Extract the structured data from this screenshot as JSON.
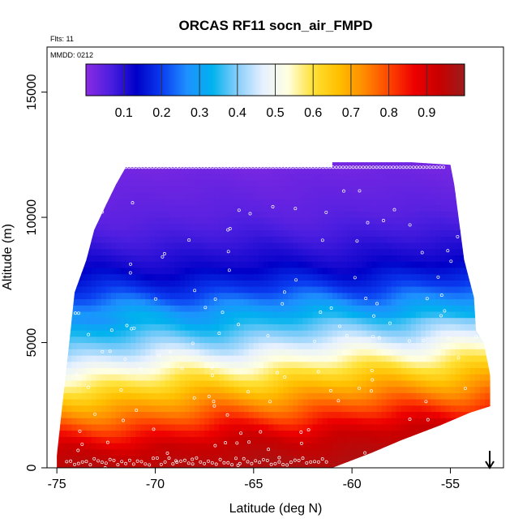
{
  "chart_data": {
    "type": "heatmap",
    "title": "ORCAS RF11 socn_air_FMPD",
    "annotations": [
      "Flts: 11",
      "MMDD: 0212"
    ],
    "xlabel": "Latitude (deg N)",
    "ylabel": "Altitude (m)",
    "xlim": [
      -75.5,
      -52.3
    ],
    "ylim": [
      0,
      16800
    ],
    "x_ticks": [
      -75,
      -70,
      -65,
      -60,
      -55
    ],
    "x_tick_labels": [
      "-75",
      "-70",
      "-65",
      "-60",
      "-55"
    ],
    "y_ticks": [
      0,
      5000,
      10000,
      15000
    ],
    "y_tick_labels": [
      "0",
      "5000",
      "10000",
      "15000"
    ],
    "colorbar": {
      "ticks": [
        0.1,
        0.2,
        0.3,
        0.4,
        0.5,
        0.6,
        0.7,
        0.8,
        0.9
      ],
      "tick_labels": [
        "0.1",
        "0.2",
        "0.3",
        "0.4",
        "0.5",
        "0.6",
        "0.7",
        "0.8",
        "0.9"
      ],
      "range": [
        0,
        1
      ],
      "colors": [
        "#8a2be2",
        "#4b1ee0",
        "#0000c8",
        "#0a3cf0",
        "#1e90ff",
        "#00b2ee",
        "#87cefa",
        "#e6f0ff",
        "#ffffe0",
        "#ffe135",
        "#ffc000",
        "#ff8c00",
        "#ff4500",
        "#ee0000",
        "#c80000",
        "#9b1c1c"
      ]
    },
    "domain": {
      "lat_min": -75,
      "lat_max": -53,
      "top_boundary": [
        [
          -75,
          500
        ],
        [
          -74.3,
          5500
        ],
        [
          -74.1,
          7000
        ],
        [
          -73.5,
          8300
        ],
        [
          -73.1,
          9500
        ],
        [
          -72.5,
          10500
        ],
        [
          -72.0,
          11300
        ],
        [
          -71.5,
          12000
        ],
        [
          -61.0,
          12000
        ],
        [
          -61.0,
          12200
        ],
        [
          -57.0,
          12200
        ],
        [
          -55.0,
          12100
        ],
        [
          -54.8,
          11300
        ],
        [
          -54.3,
          8300
        ],
        [
          -53.8,
          6800
        ],
        [
          -53.7,
          5500
        ],
        [
          -53.3,
          5000
        ],
        [
          -53.0,
          3800
        ],
        [
          -52.8,
          2500
        ]
      ],
      "bottom_boundary": [
        [
          -75.2,
          0
        ],
        [
          -61.0,
          0
        ],
        [
          -59.0,
          600
        ],
        [
          -57.5,
          1100
        ],
        [
          -55.5,
          1700
        ],
        [
          -54.0,
          2200
        ],
        [
          -52.8,
          2500
        ]
      ]
    },
    "layers": [
      {
        "altitude": 0,
        "value": 0.97
      },
      {
        "altitude": 1000,
        "value": 0.93
      },
      {
        "altitude": 2000,
        "value": 0.8
      },
      {
        "altitude": 3000,
        "value": 0.68
      },
      {
        "altitude": 4000,
        "value": 0.55
      },
      {
        "altitude": 5000,
        "value": 0.42
      },
      {
        "altitude": 6000,
        "value": 0.32
      },
      {
        "altitude": 7000,
        "value": 0.2
      },
      {
        "altitude": 8000,
        "value": 0.12
      },
      {
        "altitude": 9000,
        "value": 0.08
      },
      {
        "altitude": 10000,
        "value": 0.05
      },
      {
        "altitude": 12200,
        "value": 0.02
      }
    ],
    "marker": {
      "latitude": -53.0,
      "symbol": "arrow-down"
    }
  }
}
